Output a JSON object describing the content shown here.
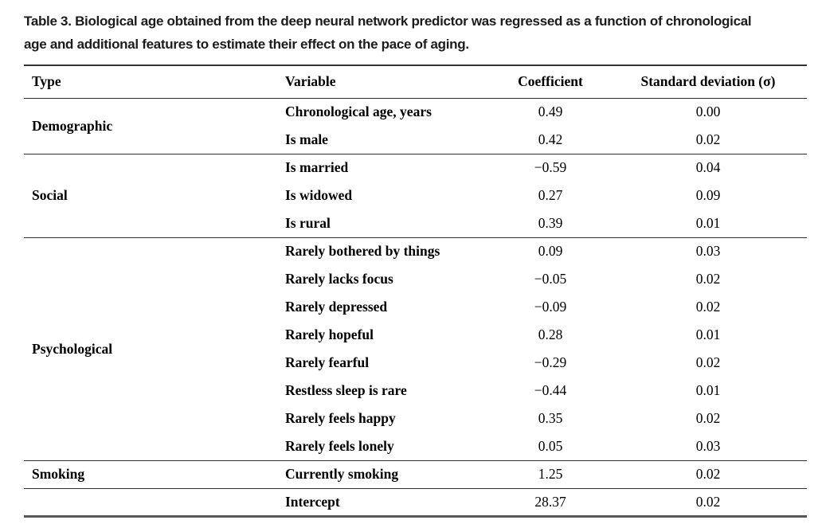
{
  "caption": {
    "line1": "Table 3. Biological age obtained from the deep neural network predictor was regressed as a function of chronological",
    "line2": "age and additional features to estimate their effect on the pace of aging."
  },
  "table": {
    "headers": [
      "Type",
      "Variable",
      "Coefficient",
      "Standard deviation (σ)"
    ],
    "sections": [
      {
        "type": "Demographic",
        "rows": [
          {
            "variable": "Chronological age, years",
            "coefficient": "0.49",
            "sd": "0.00"
          },
          {
            "variable": "Is male",
            "coefficient": "0.42",
            "sd": "0.02"
          }
        ]
      },
      {
        "type": "Social",
        "rows": [
          {
            "variable": "Is married",
            "coefficient": "−0.59",
            "sd": "0.04"
          },
          {
            "variable": "Is widowed",
            "coefficient": "0.27",
            "sd": "0.09"
          },
          {
            "variable": "Is rural",
            "coefficient": "0.39",
            "sd": "0.01"
          }
        ]
      },
      {
        "type": "Psychological",
        "rows": [
          {
            "variable": "Rarely bothered by things",
            "coefficient": "0.09",
            "sd": "0.03"
          },
          {
            "variable": "Rarely lacks focus",
            "coefficient": "−0.05",
            "sd": "0.02"
          },
          {
            "variable": "Rarely depressed",
            "coefficient": "−0.09",
            "sd": "0.02"
          },
          {
            "variable": "Rarely hopeful",
            "coefficient": "0.28",
            "sd": "0.01"
          },
          {
            "variable": "Rarely fearful",
            "coefficient": "−0.29",
            "sd": "0.02"
          },
          {
            "variable": "Restless sleep is rare",
            "coefficient": "−0.44",
            "sd": "0.01"
          },
          {
            "variable": "Rarely feels happy",
            "coefficient": "0.35",
            "sd": "0.02"
          },
          {
            "variable": "Rarely feels lonely",
            "coefficient": "0.05",
            "sd": "0.03"
          }
        ]
      },
      {
        "type": "Smoking",
        "rows": [
          {
            "variable": "Currently smoking",
            "coefficient": "1.25",
            "sd": "0.02"
          }
        ]
      },
      {
        "type": "",
        "rows": [
          {
            "variable": "Intercept",
            "coefficient": "28.37",
            "sd": "0.02"
          }
        ]
      }
    ]
  },
  "colors": {
    "text": "#000000",
    "caption_text": "#1c1c1c",
    "rule_thin": "#2e2e2e",
    "rule_thick_top": "#343434",
    "rule_thick_bottom": "#565656",
    "background": "#ffffff"
  }
}
